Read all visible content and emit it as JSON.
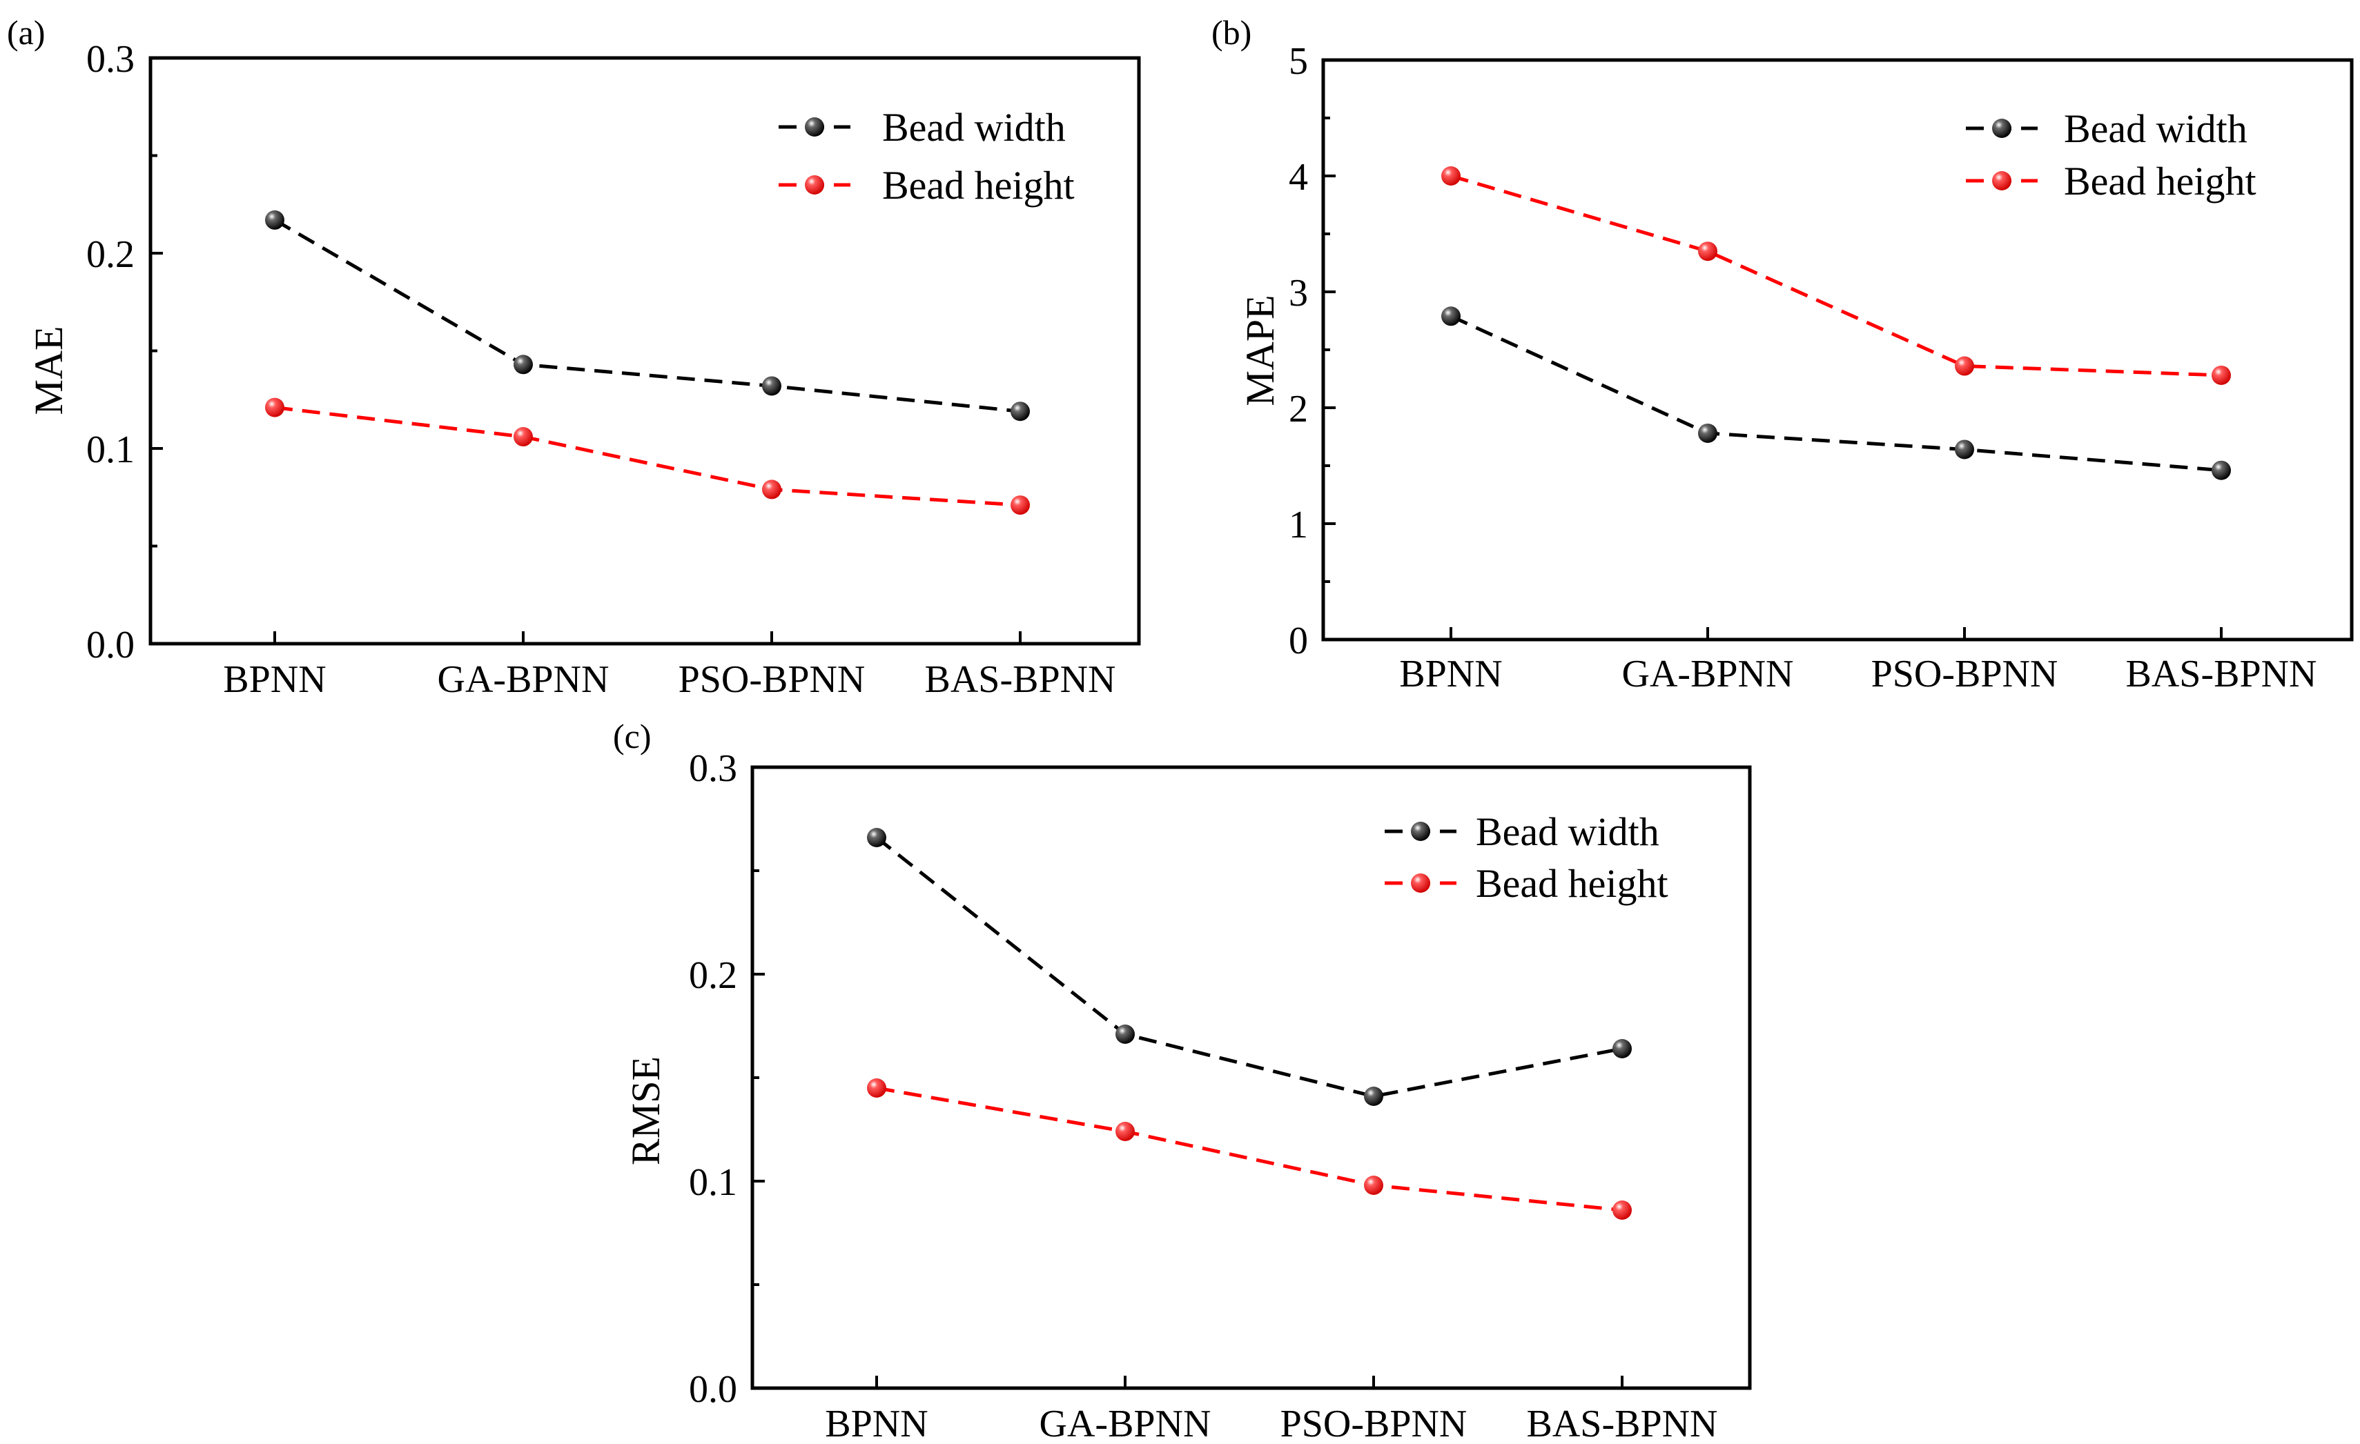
{
  "colors": {
    "series_1": "#000000",
    "series_2": "#ff0000",
    "axis": "#000000",
    "background": "#ffffff"
  },
  "chart_data": [
    {
      "type": "line",
      "panel_label": "(a)",
      "ylabel": "MAE",
      "xlabel": "",
      "categories": [
        "BPNN",
        "GA-BPNN",
        "PSO-BPNN",
        "BAS-BPNN"
      ],
      "ylim": [
        0,
        0.3
      ],
      "yticks": [
        0.0,
        0.1,
        0.2,
        0.3
      ],
      "ytick_labels": [
        "0.0",
        "0.1",
        "0.2",
        "0.3"
      ],
      "legend_position": "top-right",
      "series": [
        {
          "name": "Bead width",
          "color": "#000000",
          "values": [
            0.217,
            0.143,
            0.132,
            0.119
          ]
        },
        {
          "name": "Bead height",
          "color": "#ff0000",
          "values": [
            0.121,
            0.106,
            0.079,
            0.071
          ]
        }
      ]
    },
    {
      "type": "line",
      "panel_label": "(b)",
      "ylabel": "MAPE",
      "xlabel": "",
      "categories": [
        "BPNN",
        "GA-BPNN",
        "PSO-BPNN",
        "BAS-BPNN"
      ],
      "ylim": [
        0,
        5
      ],
      "yticks": [
        0,
        1,
        2,
        3,
        4,
        5
      ],
      "ytick_labels": [
        "0",
        "1",
        "2",
        "3",
        "4",
        "5"
      ],
      "legend_position": "top-right",
      "series": [
        {
          "name": "Bead width",
          "color": "#000000",
          "values": [
            2.79,
            1.78,
            1.64,
            1.46
          ]
        },
        {
          "name": "Bead height",
          "color": "#ff0000",
          "values": [
            4.0,
            3.35,
            2.36,
            2.28
          ]
        }
      ]
    },
    {
      "type": "line",
      "panel_label": "(c)",
      "ylabel": "RMSE",
      "xlabel": "",
      "categories": [
        "BPNN",
        "GA-BPNN",
        "PSO-BPNN",
        "BAS-BPNN"
      ],
      "ylim": [
        0,
        0.3
      ],
      "yticks": [
        0.0,
        0.1,
        0.2,
        0.3
      ],
      "ytick_labels": [
        "0.0",
        "0.1",
        "0.2",
        "0.3"
      ],
      "legend_position": "top-right",
      "series": [
        {
          "name": "Bead width",
          "color": "#000000",
          "values": [
            0.266,
            0.171,
            0.141,
            0.164
          ]
        },
        {
          "name": "Bead height",
          "color": "#ff0000",
          "values": [
            0.145,
            0.124,
            0.098,
            0.086
          ]
        }
      ]
    }
  ]
}
